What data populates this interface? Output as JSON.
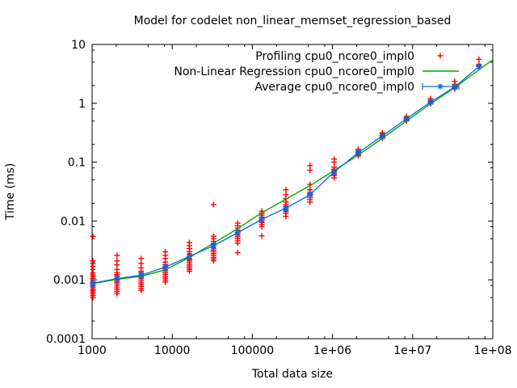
{
  "window": {
    "background": "#ffffff"
  },
  "chart": {
    "title": "Model for codelet non_linear_memset_regression_based",
    "xlabel": "Total data size",
    "ylabel": "Time (ms)"
  },
  "chart_data": {
    "type": "scatter",
    "subtype": "log-log gnuplot plot with points, regression line and error-bar line",
    "title": "Model for codelet non_linear_memset_regression_based",
    "xlabel": "Total data size",
    "ylabel": "Time (ms)",
    "xlim": [
      1000,
      100000000
    ],
    "ylim": [
      0.0001,
      10
    ],
    "x_scale": "log10",
    "y_scale": "log10",
    "grid": false,
    "legend_position": "top-right-inside",
    "x_ticks": [
      {
        "v": 1000,
        "label": "1000"
      },
      {
        "v": 10000,
        "label": "10000"
      },
      {
        "v": 100000,
        "label": "100000"
      },
      {
        "v": 1000000,
        "label": "1e+06"
      },
      {
        "v": 10000000,
        "label": "1e+07"
      },
      {
        "v": 100000000,
        "label": "1e+08"
      }
    ],
    "y_ticks": [
      {
        "v": 0.0001,
        "label": "0.0001"
      },
      {
        "v": 0.001,
        "label": "0.001"
      },
      {
        "v": 0.01,
        "label": "0.01"
      },
      {
        "v": 0.1,
        "label": "0.1"
      },
      {
        "v": 1,
        "label": "1"
      },
      {
        "v": 10,
        "label": "10"
      }
    ],
    "minor_tick_multipliers": [
      2,
      5,
      8
    ],
    "colors": {
      "profiling": "#ff0000",
      "regression": "#00aa00",
      "average": "#1166dd",
      "axis": "#000000"
    },
    "series": [
      {
        "name": "Profiling cpu0_ncore0_impl0",
        "type": "points",
        "marker": "plus",
        "color_key": "profiling",
        "clusters": [
          {
            "n": 1024,
            "t": [
              0.0005,
              0.00054,
              0.00058,
              0.00062,
              0.00066,
              0.0007,
              0.00075,
              0.0008,
              0.00086,
              0.00092,
              0.00099,
              0.00106,
              0.00114,
              0.00122,
              0.00131,
              0.0015,
              0.0017,
              0.0019,
              0.0021,
              0.0055
            ]
          },
          {
            "n": 2048,
            "t": [
              0.00058,
              0.00063,
              0.00068,
              0.00073,
              0.00079,
              0.00085,
              0.00091,
              0.00098,
              0.00106,
              0.00114,
              0.00123,
              0.00132,
              0.0015,
              0.0018,
              0.0021,
              0.0026
            ]
          },
          {
            "n": 4096,
            "t": [
              0.00066,
              0.00071,
              0.00077,
              0.00083,
              0.00089,
              0.00096,
              0.00104,
              0.00112,
              0.0012,
              0.0013,
              0.0014,
              0.0016,
              0.0019,
              0.0023
            ]
          },
          {
            "n": 8192,
            "t": [
              0.00092,
              0.00099,
              0.00107,
              0.00115,
              0.00124,
              0.00133,
              0.00143,
              0.00154,
              0.00166,
              0.0018,
              0.002,
              0.0023,
              0.0026,
              0.003
            ]
          },
          {
            "n": 16384,
            "t": [
              0.0014,
              0.0015,
              0.0016,
              0.00172,
              0.00185,
              0.002,
              0.00215,
              0.0023,
              0.0025,
              0.0027,
              0.003,
              0.0034,
              0.0038,
              0.0043
            ]
          },
          {
            "n": 32768,
            "t": [
              0.0021,
              0.00225,
              0.0024,
              0.0026,
              0.0028,
              0.003,
              0.0032,
              0.0035,
              0.0038,
              0.0041,
              0.0045,
              0.005,
              0.0055,
              0.019
            ]
          },
          {
            "n": 65536,
            "t": [
              0.0029,
              0.0042,
              0.0046,
              0.005,
              0.0054,
              0.0059,
              0.0064,
              0.007,
              0.0076,
              0.0083,
              0.0092
            ]
          },
          {
            "n": 131072,
            "t": [
              0.0056,
              0.008,
              0.0087,
              0.0094,
              0.0101,
              0.0109,
              0.0117,
              0.0126,
              0.0136,
              0.0147
            ]
          },
          {
            "n": 262144,
            "t": [
              0.012,
              0.0135,
              0.0145,
              0.0155,
              0.0165,
              0.0175,
              0.019,
              0.021,
              0.024,
              0.028,
              0.034
            ]
          },
          {
            "n": 524288,
            "t": [
              0.021,
              0.023,
              0.025,
              0.027,
              0.029,
              0.031,
              0.034,
              0.042,
              0.073,
              0.088
            ]
          },
          {
            "n": 1048576,
            "t": [
              0.054,
              0.059,
              0.063,
              0.067,
              0.071,
              0.076,
              0.082,
              0.1,
              0.113
            ]
          },
          {
            "n": 2097152,
            "t": [
              0.128,
              0.136,
              0.142,
              0.148,
              0.155,
              0.165
            ]
          },
          {
            "n": 4194304,
            "t": [
              0.255,
              0.265,
              0.275,
              0.285,
              0.3,
              0.315
            ]
          },
          {
            "n": 8388608,
            "t": [
              0.5,
              0.52,
              0.545,
              0.57,
              0.6
            ]
          },
          {
            "n": 16777216,
            "t": [
              0.98,
              1.03,
              1.08,
              1.13,
              1.2
            ]
          },
          {
            "n": 33554432,
            "t": [
              1.75,
              1.85,
              1.95,
              2.1,
              2.35
            ]
          },
          {
            "n": 67108864,
            "t": [
              4.3,
              4.6,
              5.6
            ]
          }
        ]
      },
      {
        "name": "Non-Linear Regression cpu0_ncore0_impl0",
        "type": "line",
        "color_key": "regression",
        "points": [
          {
            "n": 1000,
            "t": 0.00086
          },
          {
            "n": 2048,
            "t": 0.00102
          },
          {
            "n": 4096,
            "t": 0.00115
          },
          {
            "n": 8192,
            "t": 0.00148
          },
          {
            "n": 16384,
            "t": 0.0024
          },
          {
            "n": 32768,
            "t": 0.0042
          },
          {
            "n": 65536,
            "t": 0.0074
          },
          {
            "n": 131072,
            "t": 0.0138
          },
          {
            "n": 262144,
            "t": 0.0235
          },
          {
            "n": 524288,
            "t": 0.04
          },
          {
            "n": 1048576,
            "t": 0.072
          },
          {
            "n": 2097152,
            "t": 0.132
          },
          {
            "n": 4194304,
            "t": 0.255
          },
          {
            "n": 8388608,
            "t": 0.5
          },
          {
            "n": 16777216,
            "t": 0.98
          },
          {
            "n": 33554432,
            "t": 1.85
          },
          {
            "n": 67108864,
            "t": 3.7
          },
          {
            "n": 100000000,
            "t": 5.5
          }
        ]
      },
      {
        "name": "Average cpu0_ncore0_impl0",
        "type": "yerrorlines",
        "marker": "asterisk",
        "color_key": "average",
        "points": [
          {
            "n": 1024,
            "t": 0.00088,
            "e": 0.00012
          },
          {
            "n": 2048,
            "t": 0.00105,
            "e": 0.00012
          },
          {
            "n": 4096,
            "t": 0.0012,
            "e": 0.00013
          },
          {
            "n": 8192,
            "t": 0.00165,
            "e": 0.00018
          },
          {
            "n": 16384,
            "t": 0.0025,
            "e": 0.0003
          },
          {
            "n": 32768,
            "t": 0.0038,
            "e": 0.0004
          },
          {
            "n": 65536,
            "t": 0.0063,
            "e": 0.0006
          },
          {
            "n": 131072,
            "t": 0.0107,
            "e": 0.001
          },
          {
            "n": 262144,
            "t": 0.0165,
            "e": 0.0015
          },
          {
            "n": 524288,
            "t": 0.028,
            "e": 0.003
          },
          {
            "n": 1048576,
            "t": 0.068,
            "e": 0.006
          },
          {
            "n": 2097152,
            "t": 0.145,
            "e": 0.012
          },
          {
            "n": 4194304,
            "t": 0.28,
            "e": 0.02
          },
          {
            "n": 8388608,
            "t": 0.545,
            "e": 0.04
          },
          {
            "n": 16777216,
            "t": 1.05,
            "e": 0.08
          },
          {
            "n": 33554432,
            "t": 1.9,
            "e": 0.15
          },
          {
            "n": 67108864,
            "t": 4.2,
            "e": 0.3
          }
        ]
      }
    ]
  }
}
